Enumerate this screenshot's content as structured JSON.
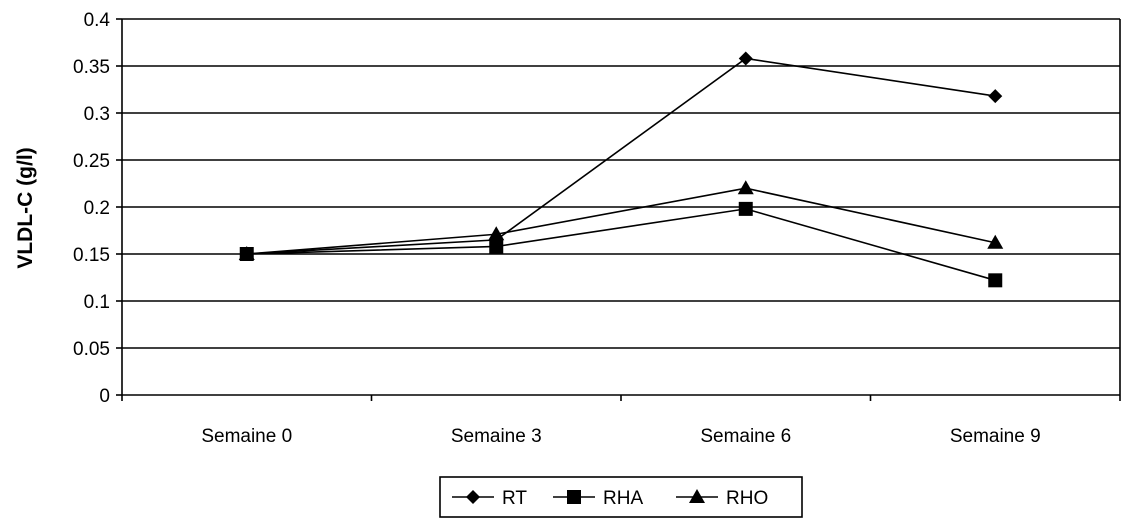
{
  "chart_data": {
    "type": "line",
    "title": "",
    "xlabel": "",
    "ylabel": "VLDL-C (g/l)",
    "categories": [
      "Semaine 0",
      "Semaine 3",
      "Semaine 6",
      "Semaine 9"
    ],
    "ylim": [
      0,
      0.4
    ],
    "yticks": [
      "0",
      "0.05",
      "0.1",
      "0.15",
      "0.2",
      "0.25",
      "0.3",
      "0.35",
      "0.4"
    ],
    "grid": "horizontal",
    "legend_position": "bottom",
    "series": [
      {
        "name": "RT",
        "marker": "diamond",
        "color": "#000000",
        "values": [
          0.15,
          0.165,
          0.358,
          0.318
        ]
      },
      {
        "name": "RHA",
        "marker": "square",
        "color": "#000000",
        "values": [
          0.15,
          0.158,
          0.198,
          0.122
        ]
      },
      {
        "name": "RHO",
        "marker": "triangle",
        "color": "#000000",
        "values": [
          0.15,
          0.171,
          0.22,
          0.162
        ]
      }
    ]
  }
}
